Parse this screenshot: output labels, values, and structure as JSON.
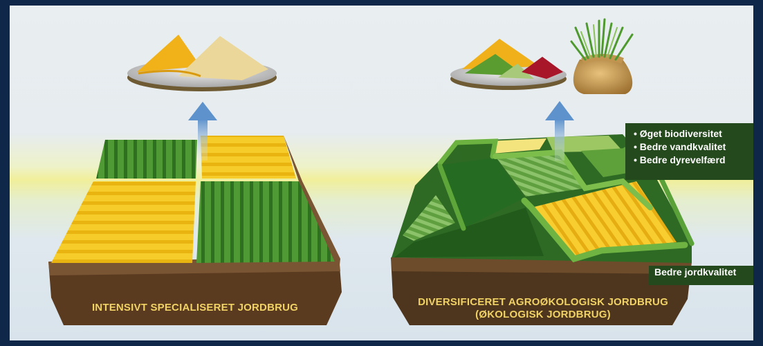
{
  "left_farm": {
    "label": "INTENSIVT SPECIALISERET JORDBRUG"
  },
  "right_farm": {
    "label_line1": "DIVERSIFICERET AGROØKOLOGISK JORDBRUG",
    "label_line2": "(ØKOLOGISK JORDBRUG)"
  },
  "benefits": {
    "items": [
      "• Øget biodiversitet",
      "• Bedre vandkvalitet",
      "• Bedre dyrevelfærd"
    ]
  },
  "soil_quality": "Bedre jordkvalitet",
  "colors": {
    "frame": "#0f2749",
    "label_text": "#f0d265",
    "tag_bg": "#23491c",
    "soil": "#5a3d22",
    "crop_yellow": "#f2c21b",
    "crop_green": "#3e8f2d",
    "arrow": "#6f9fd2"
  },
  "icons": [
    "grain-plate-icon",
    "mixed-food-plate-icon",
    "harvest-sack-icon",
    "up-arrow-icon"
  ]
}
